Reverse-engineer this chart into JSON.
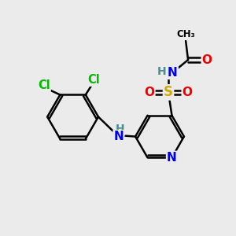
{
  "background_color": "#ebebeb",
  "atom_colors": {
    "C": "#000000",
    "H": "#4a8f8f",
    "N": "#0000ee",
    "O": "#ee0000",
    "S": "#ccaa00",
    "Cl": "#00bb00"
  },
  "bond_color": "#000000",
  "bond_width": 1.8,
  "figsize": [
    3.0,
    3.0
  ],
  "dpi": 100
}
